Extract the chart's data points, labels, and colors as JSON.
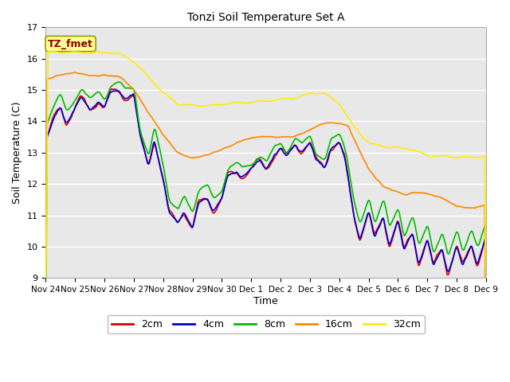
{
  "title": "Tonzi Soil Temperature Set A",
  "xlabel": "Time",
  "ylabel": "Soil Temperature (C)",
  "ylim": [
    9.0,
    17.0
  ],
  "yticks": [
    9.0,
    10.0,
    11.0,
    12.0,
    13.0,
    14.0,
    15.0,
    16.0,
    17.0
  ],
  "fig_bg_color": "#ffffff",
  "plot_bg_color": "#e8e8e8",
  "annotation_text": "TZ_fmet",
  "annotation_color": "#8b0000",
  "annotation_bg": "#ffff99",
  "annotation_edge": "#999900",
  "line_colors": {
    "2cm": "#dd0000",
    "4cm": "#0000cc",
    "8cm": "#00bb00",
    "16cm": "#ff8800",
    "32cm": "#ffee00"
  },
  "line_width": 1.2,
  "xtick_labels": [
    "Nov 24",
    "Nov 25",
    "Nov 26",
    "Nov 27",
    "Nov 28",
    "Nov 29",
    "Nov 30",
    "Dec 1",
    "Dec 2",
    "Dec 3",
    "Dec 4",
    "Dec 5",
    "Dec 6",
    "Dec 7",
    "Dec 8",
    "Dec 9"
  ],
  "grid_color": "#ffffff",
  "grid_lw": 1.0
}
